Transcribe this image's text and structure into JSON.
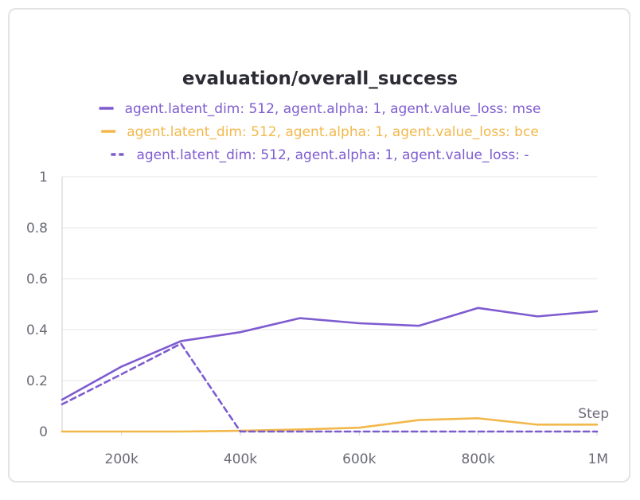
{
  "chart_data": {
    "type": "line",
    "title": "evaluation/overall_success",
    "xlabel": "Step",
    "ylabel": "",
    "xlim": [
      100000,
      1000000
    ],
    "ylim": [
      0,
      1
    ],
    "x_ticks": [
      200000,
      400000,
      600000,
      800000,
      1000000
    ],
    "x_tick_labels": [
      "200k",
      "400k",
      "600k",
      "800k",
      "1M"
    ],
    "y_ticks": [
      0,
      0.2,
      0.4,
      0.6,
      0.8,
      1
    ],
    "y_tick_labels": [
      "0",
      "0.2",
      "0.4",
      "0.6",
      "0.8",
      "1"
    ],
    "grid": true,
    "legend_position": "top-center",
    "series": [
      {
        "name": "agent.latent_dim: 512, agent.alpha: 1, agent.value_loss: mse",
        "color": "#7e5cd0",
        "dash": "solid",
        "x": [
          100000,
          200000,
          300000,
          400000,
          500000,
          600000,
          700000,
          800000,
          900000,
          1000000
        ],
        "y": [
          0.125,
          0.255,
          0.355,
          0.39,
          0.445,
          0.425,
          0.415,
          0.485,
          0.452,
          0.472
        ]
      },
      {
        "name": "agent.latent_dim: 512, agent.alpha: 1, agent.value_loss: bce",
        "color": "#f2b84b",
        "dash": "solid",
        "x": [
          100000,
          200000,
          300000,
          400000,
          500000,
          600000,
          700000,
          800000,
          900000,
          1000000
        ],
        "y": [
          0.0,
          0.0,
          0.0,
          0.003,
          0.008,
          0.015,
          0.045,
          0.052,
          0.027,
          0.027
        ]
      },
      {
        "name": "agent.latent_dim: 512, agent.alpha: 1, agent.value_loss: -",
        "color": "#7e5cd0",
        "dash": "dashed",
        "x": [
          100000,
          200000,
          300000,
          400000,
          500000,
          600000,
          700000,
          800000,
          900000,
          1000000
        ],
        "y": [
          0.107,
          0.225,
          0.345,
          0.0,
          0.0,
          0.0,
          0.0,
          0.0,
          0.0,
          0.0
        ]
      }
    ]
  }
}
